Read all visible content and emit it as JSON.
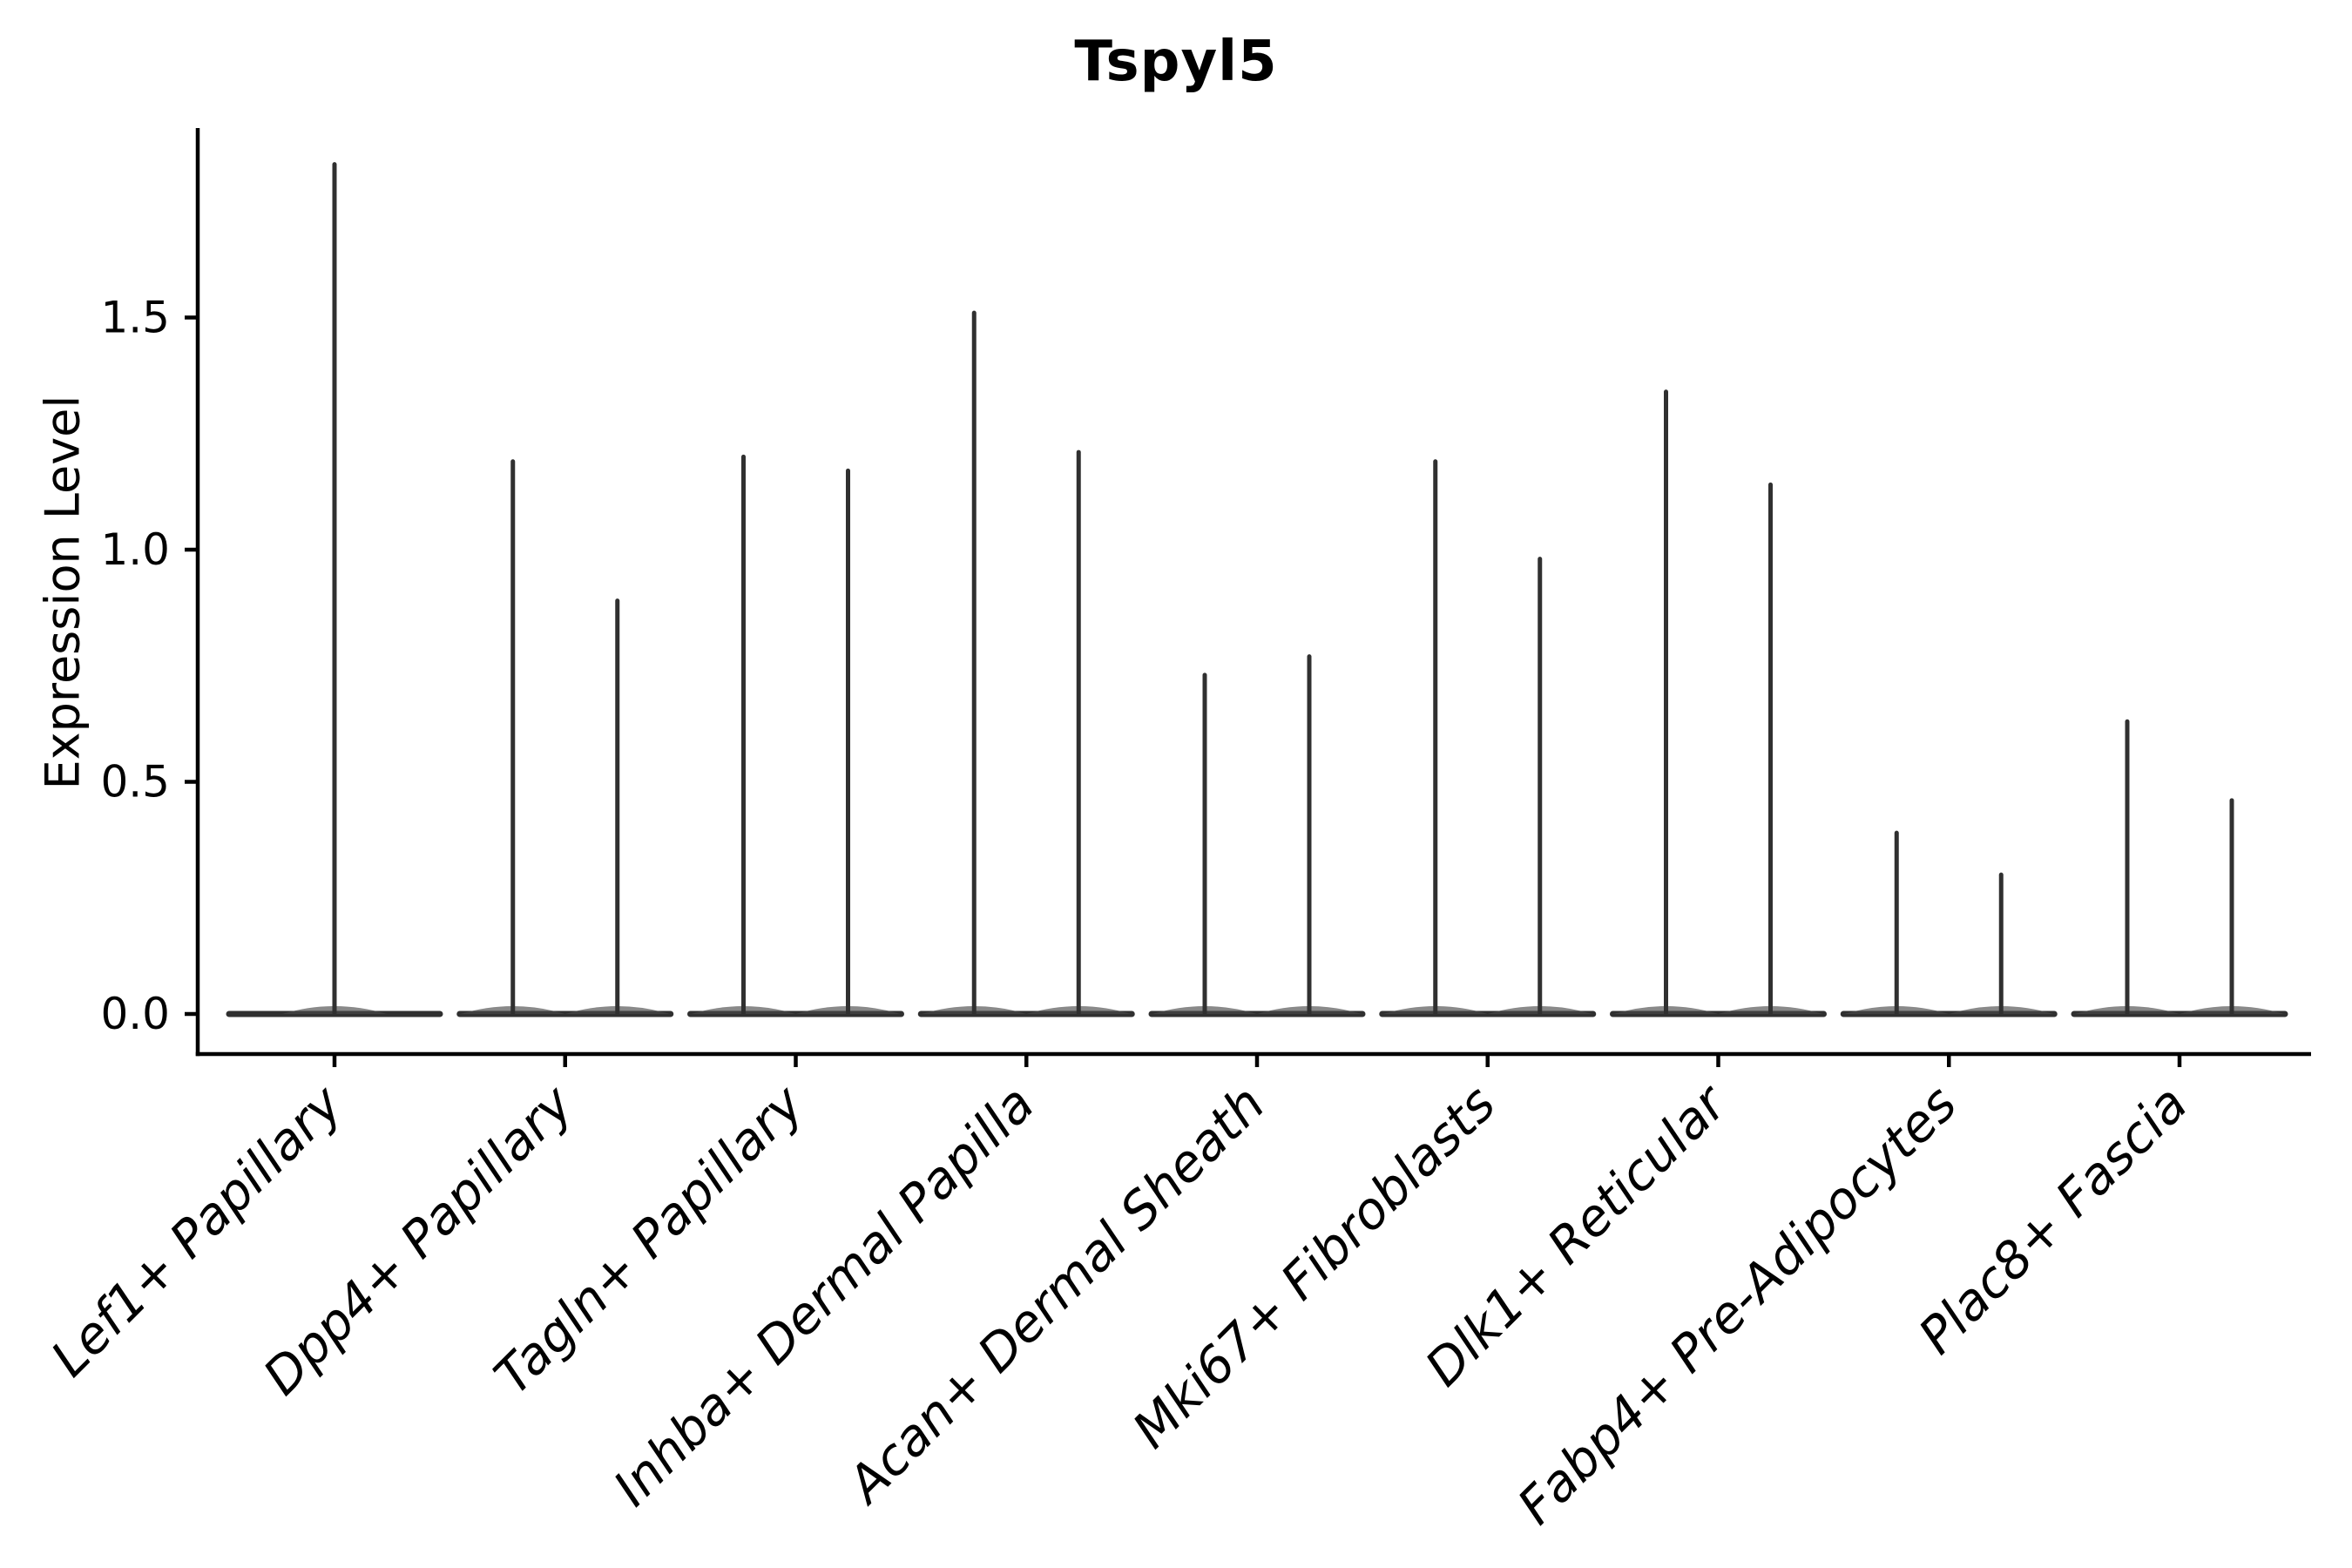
{
  "chart_data": {
    "type": "violin",
    "title": "Tspyl5",
    "xlabel": "",
    "ylabel": "Expression Level",
    "categories": [
      "Lef1+ Papillary",
      "Dpp4+ Papillary",
      "Tagln+ Papillary",
      "Inhba+ Dermal Papilla",
      "Acan+ Dermal Sheath",
      "Mki67+ Fibroblasts",
      "Dlk1+ Reticular",
      "Fabp4+ Pre-Adipocytes",
      "Plac8+ Fascia"
    ],
    "series": [
      {
        "category": "Lef1+ Papillary",
        "violin_max_values": [
          1.83
        ]
      },
      {
        "category": "Dpp4+ Papillary",
        "violin_max_values": [
          1.19,
          0.89
        ]
      },
      {
        "category": "Tagln+ Papillary",
        "violin_max_values": [
          1.2,
          1.17
        ]
      },
      {
        "category": "Inhba+ Dermal Papilla",
        "violin_max_values": [
          1.51,
          1.21
        ]
      },
      {
        "category": "Acan+ Dermal Sheath",
        "violin_max_values": [
          0.73,
          0.77
        ]
      },
      {
        "category": "Mki67+ Fibroblasts",
        "violin_max_values": [
          1.19,
          0.98
        ]
      },
      {
        "category": "Dlk1+ Reticular",
        "violin_max_values": [
          1.34,
          1.14
        ]
      },
      {
        "category": "Fabp4+ Pre-Adipocytes",
        "violin_max_values": [
          0.39,
          0.3
        ]
      },
      {
        "category": "Plac8+ Fascia",
        "violin_max_values": [
          0.63,
          0.46
        ]
      }
    ],
    "bulk_of_distribution_at": 0.0,
    "ytick_labels": [
      "0.0",
      "0.5",
      "1.0",
      "1.5"
    ],
    "ytick_values": [
      0.0,
      0.5,
      1.0,
      1.5
    ],
    "ylim": [
      -0.09,
      1.91
    ],
    "x_tick_rotation_deg": 45,
    "grid": false,
    "legend": "none",
    "colors": {
      "violin": "#303030",
      "violin_body": "#4a4a4a",
      "axis": "#000000",
      "text": "#000000",
      "background": "#ffffff"
    }
  }
}
